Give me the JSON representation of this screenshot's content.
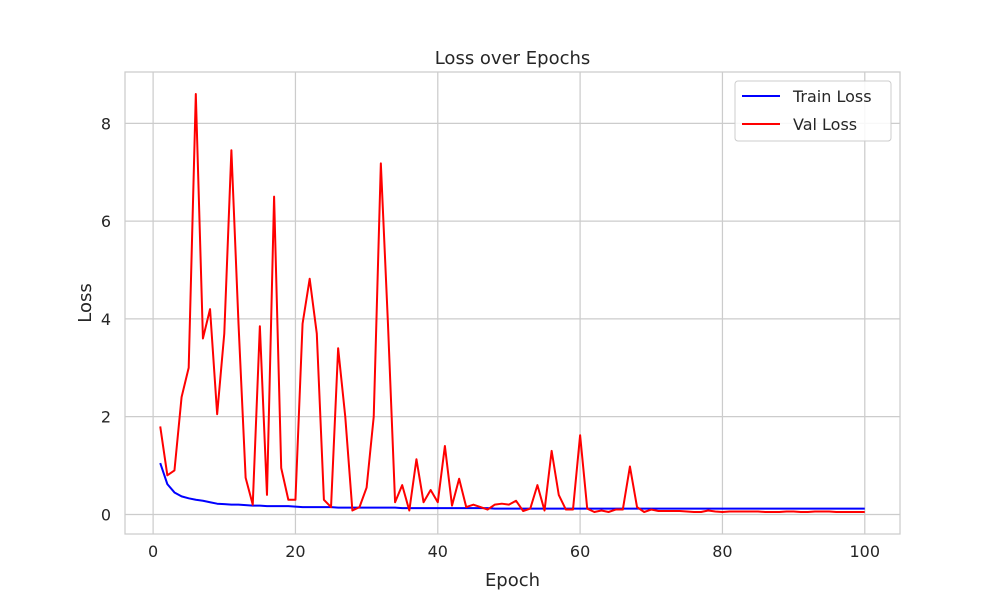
{
  "chart_data": {
    "type": "line",
    "title": "Loss over Epochs",
    "xlabel": "Epoch",
    "ylabel": "Loss",
    "xlim": [
      -3.95,
      104.95
    ],
    "ylim": [
      -0.4,
      9.05
    ],
    "xticks": [
      0,
      20,
      40,
      60,
      80,
      100
    ],
    "yticks": [
      0,
      2,
      4,
      6,
      8
    ],
    "grid": true,
    "legend_position": "top-right",
    "x": [
      1,
      2,
      3,
      4,
      5,
      6,
      7,
      8,
      9,
      10,
      11,
      12,
      13,
      14,
      15,
      16,
      17,
      18,
      19,
      20,
      21,
      22,
      23,
      24,
      25,
      26,
      27,
      28,
      29,
      30,
      31,
      32,
      33,
      34,
      35,
      36,
      37,
      38,
      39,
      40,
      41,
      42,
      43,
      44,
      45,
      46,
      47,
      48,
      49,
      50,
      51,
      52,
      53,
      54,
      55,
      56,
      57,
      58,
      59,
      60,
      61,
      62,
      63,
      64,
      65,
      66,
      67,
      68,
      69,
      70,
      71,
      72,
      73,
      74,
      75,
      76,
      77,
      78,
      79,
      80,
      81,
      82,
      83,
      84,
      85,
      86,
      87,
      88,
      89,
      90,
      91,
      92,
      93,
      94,
      95,
      96,
      97,
      98,
      99,
      100
    ],
    "series": [
      {
        "name": "Train Loss",
        "color": "#0000ff",
        "values": [
          1.05,
          0.62,
          0.45,
          0.37,
          0.33,
          0.3,
          0.28,
          0.25,
          0.22,
          0.21,
          0.2,
          0.2,
          0.19,
          0.18,
          0.18,
          0.17,
          0.17,
          0.17,
          0.17,
          0.16,
          0.15,
          0.15,
          0.15,
          0.15,
          0.15,
          0.14,
          0.14,
          0.14,
          0.14,
          0.14,
          0.14,
          0.14,
          0.14,
          0.14,
          0.13,
          0.13,
          0.13,
          0.13,
          0.13,
          0.13,
          0.13,
          0.13,
          0.13,
          0.13,
          0.13,
          0.13,
          0.13,
          0.12,
          0.12,
          0.12,
          0.12,
          0.12,
          0.12,
          0.12,
          0.12,
          0.12,
          0.12,
          0.12,
          0.12,
          0.12,
          0.12,
          0.12,
          0.12,
          0.12,
          0.12,
          0.12,
          0.12,
          0.12,
          0.12,
          0.12,
          0.12,
          0.12,
          0.12,
          0.12,
          0.12,
          0.12,
          0.12,
          0.12,
          0.12,
          0.12,
          0.12,
          0.12,
          0.12,
          0.12,
          0.12,
          0.12,
          0.12,
          0.12,
          0.12,
          0.12,
          0.12,
          0.12,
          0.12,
          0.12,
          0.12,
          0.12,
          0.12,
          0.12,
          0.12,
          0.12
        ]
      },
      {
        "name": "Val Loss",
        "color": "#ff0000",
        "values": [
          1.8,
          0.8,
          0.9,
          2.4,
          3.0,
          8.6,
          3.6,
          4.2,
          2.05,
          3.7,
          7.45,
          3.9,
          0.75,
          0.2,
          3.85,
          0.4,
          6.5,
          0.95,
          0.3,
          0.3,
          3.9,
          4.82,
          3.7,
          0.3,
          0.15,
          3.4,
          2.0,
          0.08,
          0.15,
          0.55,
          2.0,
          7.18,
          3.9,
          0.25,
          0.6,
          0.08,
          1.13,
          0.25,
          0.5,
          0.25,
          1.4,
          0.18,
          0.73,
          0.15,
          0.2,
          0.15,
          0.1,
          0.2,
          0.22,
          0.2,
          0.28,
          0.07,
          0.12,
          0.6,
          0.08,
          1.3,
          0.4,
          0.1,
          0.1,
          1.62,
          0.12,
          0.05,
          0.08,
          0.05,
          0.1,
          0.1,
          0.98,
          0.15,
          0.05,
          0.1,
          0.07,
          0.07,
          0.07,
          0.07,
          0.06,
          0.05,
          0.05,
          0.08,
          0.06,
          0.05,
          0.06,
          0.06,
          0.06,
          0.06,
          0.06,
          0.05,
          0.05,
          0.05,
          0.06,
          0.06,
          0.05,
          0.05,
          0.06,
          0.06,
          0.06,
          0.05,
          0.05,
          0.05,
          0.05,
          0.05
        ]
      }
    ]
  }
}
